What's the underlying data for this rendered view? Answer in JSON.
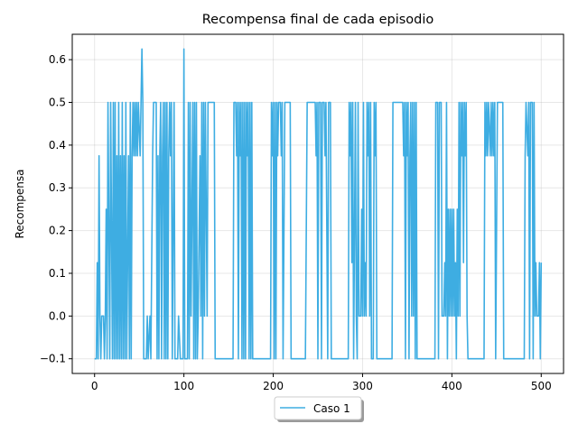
{
  "chart_data": {
    "type": "line",
    "title": "Recompensa final de cada episodio",
    "xlabel": "",
    "ylabel": "Recompensa",
    "xlim": [
      -25,
      525
    ],
    "ylim": [
      -0.1344,
      0.6594
    ],
    "xticks": [
      0,
      100,
      200,
      300,
      400,
      500
    ],
    "yticks": [
      -0.1,
      0.0,
      0.1,
      0.2,
      0.3,
      0.4,
      0.5,
      0.6
    ],
    "xtick_labels": [
      "0",
      "100",
      "200",
      "300",
      "400",
      "500"
    ],
    "ytick_labels": [
      "−0.1",
      "0.0",
      "0.1",
      "0.2",
      "0.3",
      "0.4",
      "0.5",
      "0.6"
    ],
    "grid": true,
    "legend": {
      "position": "bottom-center",
      "entries": [
        "Caso 1"
      ]
    },
    "series": [
      {
        "name": "Caso 1",
        "color": "#3eade2",
        "points": [
          [
            0,
            -0.1
          ],
          [
            2,
            -0.1
          ],
          [
            3,
            0.125
          ],
          [
            4,
            -0.1
          ],
          [
            5,
            0.375
          ],
          [
            6,
            0.0
          ],
          [
            7,
            -0.1
          ],
          [
            8,
            0.0
          ],
          [
            10,
            0.0
          ],
          [
            11,
            -0.1
          ],
          [
            12,
            0.0
          ],
          [
            13,
            0.25
          ],
          [
            14,
            -0.1
          ],
          [
            15,
            0.5
          ],
          [
            17,
            -0.1
          ],
          [
            18,
            0.5
          ],
          [
            20,
            -0.1
          ],
          [
            21,
            0.5
          ],
          [
            22,
            -0.1
          ],
          [
            23,
            0.5
          ],
          [
            24,
            -0.1
          ],
          [
            25,
            0.375
          ],
          [
            26,
            -0.1
          ],
          [
            27,
            0.5
          ],
          [
            28,
            -0.1
          ],
          [
            29,
            0.375
          ],
          [
            30,
            -0.1
          ],
          [
            31,
            0.5
          ],
          [
            32,
            -0.1
          ],
          [
            33,
            0.375
          ],
          [
            34,
            -0.1
          ],
          [
            35,
            0.5
          ],
          [
            36,
            -0.1
          ],
          [
            38,
            0.375
          ],
          [
            39,
            -0.1
          ],
          [
            40,
            0.5
          ],
          [
            41,
            -0.1
          ],
          [
            42,
            0.375
          ],
          [
            43,
            0.5
          ],
          [
            44,
            0.375
          ],
          [
            45,
            0.5
          ],
          [
            46,
            0.375
          ],
          [
            47,
            0.5
          ],
          [
            48,
            0.375
          ],
          [
            49,
            0.5
          ],
          [
            51,
            0.375
          ],
          [
            52,
            0.5
          ],
          [
            53,
            0.625
          ],
          [
            54,
            0.5
          ],
          [
            55,
            -0.1
          ],
          [
            58,
            -0.1
          ],
          [
            59,
            0.0
          ],
          [
            60,
            -0.1
          ],
          [
            62,
            0.0
          ],
          [
            63,
            -0.1
          ],
          [
            65,
            0.375
          ],
          [
            66,
            0.5
          ],
          [
            69,
            0.5
          ],
          [
            70,
            -0.1
          ],
          [
            71,
            0.375
          ],
          [
            72,
            -0.1
          ],
          [
            73,
            0.375
          ],
          [
            74,
            0.5
          ],
          [
            75,
            -0.1
          ],
          [
            76,
            0.375
          ],
          [
            77,
            0.5
          ],
          [
            78,
            -0.1
          ],
          [
            79,
            0.5
          ],
          [
            80,
            -0.1
          ],
          [
            81,
            0.5
          ],
          [
            82,
            -0.1
          ],
          [
            83,
            0.375
          ],
          [
            84,
            0.5
          ],
          [
            85,
            0.375
          ],
          [
            86,
            0.5
          ],
          [
            87,
            -0.1
          ],
          [
            89,
            0.5
          ],
          [
            90,
            -0.1
          ],
          [
            93,
            -0.1
          ],
          [
            94,
            0.0
          ],
          [
            96,
            -0.1
          ],
          [
            99,
            -0.1
          ],
          [
            100,
            0.625
          ],
          [
            101,
            -0.1
          ],
          [
            104,
            -0.1
          ],
          [
            105,
            0.5
          ],
          [
            106,
            -0.1
          ],
          [
            107,
            0.5
          ],
          [
            108,
            0.0
          ],
          [
            110,
            0.5
          ],
          [
            111,
            -0.1
          ],
          [
            112,
            0.5
          ],
          [
            113,
            -0.1
          ],
          [
            114,
            0.5
          ],
          [
            115,
            -0.1
          ],
          [
            116,
            0.0
          ],
          [
            118,
            0.375
          ],
          [
            119,
            0.0
          ],
          [
            120,
            0.5
          ],
          [
            121,
            -0.1
          ],
          [
            122,
            0.5
          ],
          [
            123,
            0.0
          ],
          [
            124,
            0.5
          ],
          [
            126,
            0.0
          ],
          [
            127,
            0.5
          ],
          [
            134,
            0.5
          ],
          [
            135,
            -0.1
          ],
          [
            155,
            -0.1
          ],
          [
            156,
            0.5
          ],
          [
            158,
            0.5
          ],
          [
            159,
            0.375
          ],
          [
            160,
            0.5
          ],
          [
            161,
            -0.1
          ],
          [
            162,
            0.5
          ],
          [
            163,
            0.375
          ],
          [
            164,
            0.5
          ],
          [
            165,
            -0.1
          ],
          [
            166,
            0.5
          ],
          [
            167,
            -0.1
          ],
          [
            168,
            0.5
          ],
          [
            169,
            -0.1
          ],
          [
            170,
            0.5
          ],
          [
            171,
            0.375
          ],
          [
            172,
            0.5
          ],
          [
            173,
            -0.1
          ],
          [
            174,
            0.5
          ],
          [
            175,
            -0.1
          ],
          [
            176,
            0.5
          ],
          [
            177,
            -0.1
          ],
          [
            197,
            -0.1
          ],
          [
            198,
            0.5
          ],
          [
            199,
            0.375
          ],
          [
            200,
            0.5
          ],
          [
            201,
            -0.1
          ],
          [
            202,
            0.5
          ],
          [
            203,
            -0.1
          ],
          [
            204,
            0.5
          ],
          [
            205,
            0.375
          ],
          [
            206,
            0.5
          ],
          [
            208,
            0.5
          ],
          [
            209,
            0.375
          ],
          [
            210,
            0.5
          ],
          [
            211,
            -0.1
          ],
          [
            213,
            0.5
          ],
          [
            219,
            0.5
          ],
          [
            220,
            -0.1
          ],
          [
            236,
            -0.1
          ],
          [
            238,
            0.5
          ],
          [
            247,
            0.5
          ],
          [
            248,
            0.375
          ],
          [
            249,
            0.5
          ],
          [
            250,
            -0.1
          ],
          [
            251,
            0.5
          ],
          [
            253,
            0.5
          ],
          [
            254,
            -0.1
          ],
          [
            255,
            0.5
          ],
          [
            257,
            0.5
          ],
          [
            258,
            0.375
          ],
          [
            259,
            0.5
          ],
          [
            261,
            -0.1
          ],
          [
            262,
            0.5
          ],
          [
            264,
            0.5
          ],
          [
            265,
            -0.1
          ],
          [
            284,
            -0.1
          ],
          [
            285,
            0.5
          ],
          [
            286,
            0.375
          ],
          [
            287,
            0.5
          ],
          [
            288,
            0.125
          ],
          [
            289,
            0.5
          ],
          [
            290,
            -0.1
          ],
          [
            292,
            0.5
          ],
          [
            293,
            0.0
          ],
          [
            294,
            -0.1
          ],
          [
            295,
            0.5
          ],
          [
            296,
            0.0
          ],
          [
            298,
            0.0
          ],
          [
            299,
            0.25
          ],
          [
            300,
            0.0
          ],
          [
            301,
            0.5
          ],
          [
            302,
            0.0
          ],
          [
            303,
            0.125
          ],
          [
            304,
            0.0
          ],
          [
            305,
            0.5
          ],
          [
            306,
            0.375
          ],
          [
            307,
            0.5
          ],
          [
            308,
            0.0
          ],
          [
            309,
            0.5
          ],
          [
            310,
            -0.1
          ],
          [
            312,
            -0.1
          ],
          [
            313,
            0.5
          ],
          [
            314,
            0.375
          ],
          [
            315,
            0.5
          ],
          [
            316,
            -0.1
          ],
          [
            333,
            -0.1
          ],
          [
            334,
            0.5
          ],
          [
            345,
            0.5
          ],
          [
            346,
            0.375
          ],
          [
            347,
            0.5
          ],
          [
            348,
            -0.1
          ],
          [
            349,
            0.5
          ],
          [
            350,
            0.375
          ],
          [
            351,
            0.5
          ],
          [
            352,
            -0.1
          ],
          [
            353,
            0.375
          ],
          [
            354,
            0.5
          ],
          [
            355,
            0.0
          ],
          [
            356,
            0.5
          ],
          [
            357,
            0.0
          ],
          [
            358,
            0.5
          ],
          [
            359,
            -0.1
          ],
          [
            360,
            0.5
          ],
          [
            361,
            -0.1
          ],
          [
            381,
            -0.1
          ],
          [
            382,
            0.5
          ],
          [
            384,
            0.5
          ],
          [
            385,
            -0.1
          ],
          [
            386,
            0.5
          ],
          [
            388,
            0.5
          ],
          [
            389,
            0.0
          ],
          [
            391,
            0.0
          ],
          [
            392,
            0.125
          ],
          [
            393,
            0.0
          ],
          [
            394,
            0.5
          ],
          [
            395,
            -0.1
          ],
          [
            396,
            0.25
          ],
          [
            397,
            0.0
          ],
          [
            398,
            0.25
          ],
          [
            399,
            0.0
          ],
          [
            400,
            0.25
          ],
          [
            401,
            0.0
          ],
          [
            402,
            0.25
          ],
          [
            403,
            0.0
          ],
          [
            404,
            0.125
          ],
          [
            405,
            -0.1
          ],
          [
            406,
            0.25
          ],
          [
            407,
            0.0
          ],
          [
            408,
            0.5
          ],
          [
            409,
            0.0
          ],
          [
            410,
            0.5
          ],
          [
            411,
            0.375
          ],
          [
            412,
            0.5
          ],
          [
            413,
            0.125
          ],
          [
            414,
            0.5
          ],
          [
            415,
            0.375
          ],
          [
            416,
            0.5
          ],
          [
            417,
            0.0
          ],
          [
            418,
            -0.1
          ],
          [
            436,
            -0.1
          ],
          [
            437,
            0.5
          ],
          [
            438,
            0.375
          ],
          [
            439,
            0.5
          ],
          [
            440,
            0.375
          ],
          [
            441,
            0.5
          ],
          [
            443,
            0.375
          ],
          [
            444,
            0.5
          ],
          [
            445,
            0.375
          ],
          [
            446,
            0.5
          ],
          [
            447,
            0.375
          ],
          [
            448,
            0.5
          ],
          [
            449,
            -0.1
          ],
          [
            451,
            0.5
          ],
          [
            457,
            0.5
          ],
          [
            458,
            -0.1
          ],
          [
            481,
            -0.1
          ],
          [
            482,
            0.375
          ],
          [
            483,
            0.5
          ],
          [
            485,
            0.375
          ],
          [
            486,
            0.5
          ],
          [
            487,
            -0.1
          ],
          [
            488,
            0.5
          ],
          [
            490,
            0.5
          ],
          [
            491,
            -0.1
          ],
          [
            492,
            0.5
          ],
          [
            493,
            0.0
          ],
          [
            494,
            0.125
          ],
          [
            495,
            0.0
          ],
          [
            497,
            0.0
          ],
          [
            498,
            0.125
          ],
          [
            499,
            -0.1
          ],
          [
            500,
            0.125
          ]
        ]
      }
    ]
  }
}
